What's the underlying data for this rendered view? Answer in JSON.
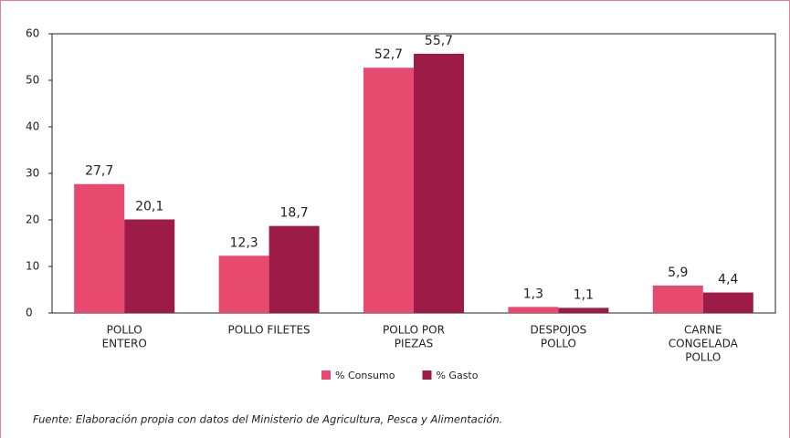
{
  "chart_data": {
    "type": "bar",
    "categories": [
      [
        "POLLO",
        "ENTERO"
      ],
      [
        "POLLO FILETES"
      ],
      [
        "POLLO POR",
        "PIEZAS"
      ],
      [
        "DESPOJOS",
        "POLLO"
      ],
      [
        "CARNE",
        "CONGELADA",
        "POLLO"
      ]
    ],
    "series": [
      {
        "name": "% Consumo",
        "color": "#e8496e",
        "values": [
          27.7,
          12.3,
          52.7,
          1.3,
          5.9
        ],
        "value_labels": [
          "27,7",
          "12,3",
          "52,7",
          "1,3",
          "5,9"
        ]
      },
      {
        "name": "% Gasto",
        "color": "#9c1b47",
        "values": [
          20.1,
          18.7,
          55.7,
          1.1,
          4.4
        ],
        "value_labels": [
          "20,1",
          "18,7",
          "55,7",
          "1,1",
          "4,4"
        ]
      }
    ],
    "ylim": [
      0,
      60
    ],
    "yticks": [
      0,
      10,
      20,
      30,
      40,
      50,
      60
    ],
    "grid": false,
    "source": "Fuente: Elaboración propia con datos del Ministerio de Agricultura, Pesca y Alimentación."
  }
}
